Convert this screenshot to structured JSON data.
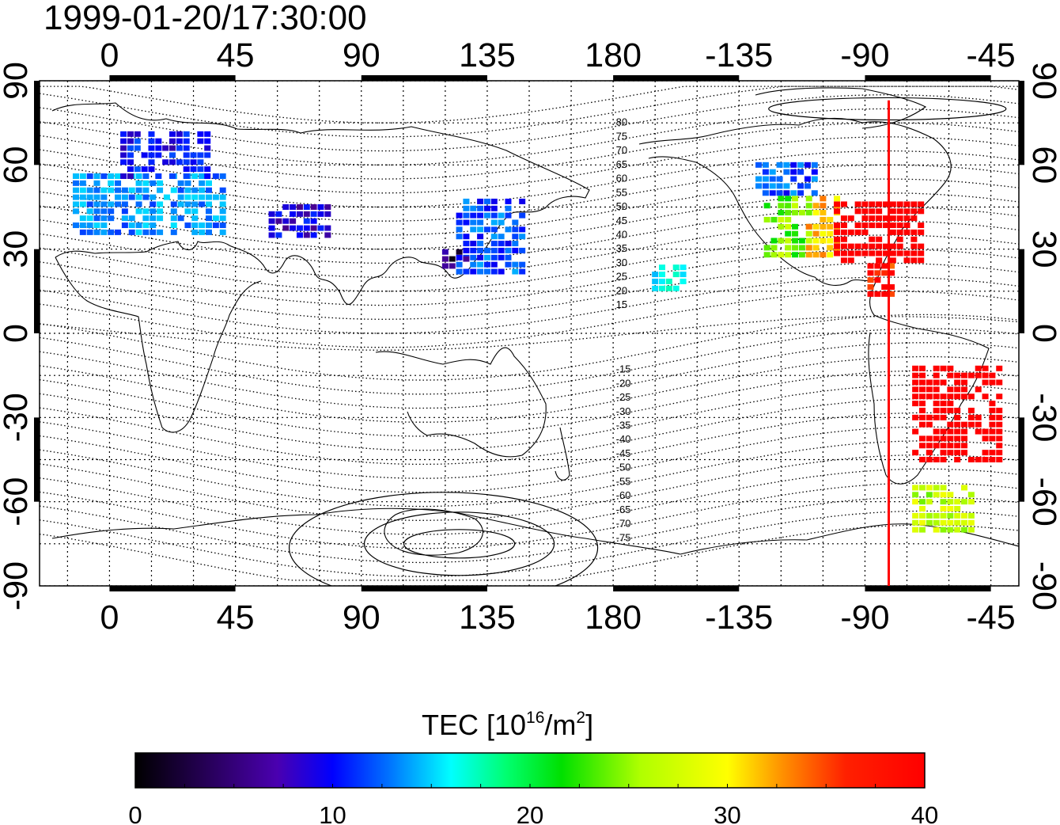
{
  "title": "1999-01-20/17:30:00",
  "map": {
    "lon_range": [
      -25,
      325
    ],
    "lat_range": [
      -90,
      90
    ],
    "grid_on": true,
    "top_lon_ticks": [
      {
        "lon": 0,
        "label": "0"
      },
      {
        "lon": 45,
        "label": "45"
      },
      {
        "lon": 90,
        "label": "90"
      },
      {
        "lon": 135,
        "label": "135"
      },
      {
        "lon": 180,
        "label": "180"
      },
      {
        "lon": 225,
        "label": "-135"
      },
      {
        "lon": 270,
        "label": "-90"
      },
      {
        "lon": 315,
        "label": "-45"
      }
    ],
    "bottom_lon_ticks": [
      {
        "lon": 0,
        "label": "0"
      },
      {
        "lon": 45,
        "label": "45"
      },
      {
        "lon": 90,
        "label": "90"
      },
      {
        "lon": 135,
        "label": "135"
      },
      {
        "lon": 180,
        "label": "180"
      },
      {
        "lon": 225,
        "label": "-135"
      },
      {
        "lon": 270,
        "label": "-90"
      },
      {
        "lon": 315,
        "label": "-45"
      }
    ],
    "lat_ticks": [
      {
        "lat": 90,
        "label": "90"
      },
      {
        "lat": 60,
        "label": "60"
      },
      {
        "lat": 30,
        "label": "30"
      },
      {
        "lat": 0,
        "label": "0"
      },
      {
        "lat": -30,
        "label": "-30"
      },
      {
        "lat": -60,
        "label": "-60"
      },
      {
        "lat": -90,
        "label": "-90"
      }
    ],
    "contour_labels_north": [
      "80",
      "75",
      "70",
      "65",
      "60",
      "55",
      "50",
      "45",
      "40",
      "35",
      "30",
      "25",
      "20",
      "15"
    ],
    "contour_labels_south": [
      "-15",
      "-20",
      "-25",
      "-30",
      "-35",
      "-40",
      "-45",
      "-50",
      "-55",
      "-60",
      "-65",
      "-70",
      "-75"
    ],
    "noon_meridian_lon": 278.5,
    "noon_line_color": "#ff0000"
  },
  "colorbar": {
    "title_main": "TEC  [10",
    "title_sup": "16",
    "title_mid": "/m",
    "title_sup2": "2",
    "title_end": "]",
    "min": 0,
    "max": 40,
    "ticks": [
      {
        "value": 0,
        "label": "0"
      },
      {
        "value": 10,
        "label": "10"
      },
      {
        "value": 20,
        "label": "20"
      },
      {
        "value": 30,
        "label": "30"
      },
      {
        "value": 40,
        "label": "40"
      }
    ],
    "colormap": [
      "#000000",
      "#4a0090",
      "#0000ff",
      "#00a0ff",
      "#00ffff",
      "#00ff60",
      "#00e000",
      "#c0ff00",
      "#ffff00",
      "#ff9000",
      "#ff0000",
      "#ff0000"
    ]
  },
  "chart_data": {
    "type": "heatmap",
    "title": "1999-01-20/17:30:00",
    "xlabel": "",
    "ylabel": "",
    "value_label": "TEC  [10^16/m^2]",
    "xlim": [
      -25,
      325
    ],
    "ylim": [
      -90,
      90
    ],
    "value_range": [
      0,
      40
    ],
    "regions": [
      {
        "lon": [
          -12,
          42
        ],
        "lat": [
          36,
          58
        ],
        "tec": 11
      },
      {
        "lon": [
          5,
          35
        ],
        "lat": [
          56,
          71
        ],
        "tec": 7
      },
      {
        "lon": [
          125,
          148
        ],
        "lat": [
          22,
          47
        ],
        "tec": 9
      },
      {
        "lon": [
          120,
          128
        ],
        "lat": [
          24,
          30
        ],
        "tec": 3
      },
      {
        "lon": [
          -128,
          -108
        ],
        "lat": [
          50,
          62
        ],
        "tec": 9
      },
      {
        "lon": [
          -125,
          -110
        ],
        "lat": [
          28,
          50
        ],
        "tec": 24
      },
      {
        "lon": [
          -110,
          -98
        ],
        "lat": [
          28,
          50
        ],
        "tec": 31
      },
      {
        "lon": [
          -100,
          -70
        ],
        "lat": [
          26,
          48
        ],
        "tec": 39
      },
      {
        "lon": [
          -88,
          -80
        ],
        "lat": [
          14,
          24
        ],
        "tec": 36
      },
      {
        "lon": [
          -72,
          -40
        ],
        "lat": [
          -45,
          -12
        ],
        "tec": 39
      },
      {
        "lon": [
          -72,
          -50
        ],
        "lat": [
          -70,
          -55
        ],
        "tec": 26
      },
      {
        "lon": [
          -165,
          -155
        ],
        "lat": [
          16,
          24
        ],
        "tec": 14
      },
      {
        "lon": [
          58,
          80
        ],
        "lat": [
          35,
          45
        ],
        "tec": 6
      }
    ]
  }
}
